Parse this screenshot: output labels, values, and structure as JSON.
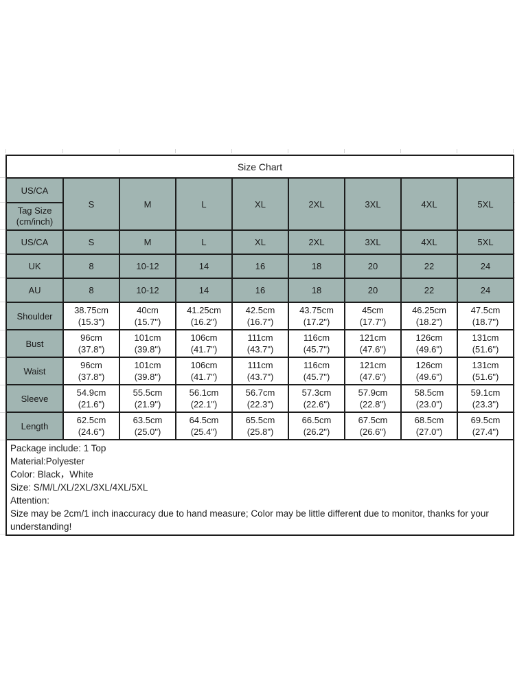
{
  "title": "Size Chart",
  "size_chart": {
    "corner_top": "US/CA",
    "corner_bottom": "Tag Size\n(cm/inch)",
    "sizes": [
      "S",
      "M",
      "L",
      "XL",
      "2XL",
      "3XL",
      "4XL",
      "5XL"
    ],
    "conversion_rows": [
      {
        "label": "US/CA",
        "values": [
          "S",
          "M",
          "L",
          "XL",
          "2XL",
          "3XL",
          "4XL",
          "5XL"
        ]
      },
      {
        "label": "UK",
        "values": [
          "8",
          "10-12",
          "14",
          "16",
          "18",
          "20",
          "22",
          "24"
        ]
      },
      {
        "label": "AU",
        "values": [
          "8",
          "10-12",
          "14",
          "16",
          "18",
          "20",
          "22",
          "24"
        ]
      }
    ],
    "measurement_rows": [
      {
        "label": "Shoulder",
        "values": [
          "38.75cm\n(15.3\")",
          "40cm\n(15.7\")",
          "41.25cm\n(16.2\")",
          "42.5cm\n(16.7\")",
          "43.75cm\n(17.2\")",
          "45cm\n(17.7\")",
          "46.25cm\n(18.2\")",
          "47.5cm\n(18.7\")"
        ]
      },
      {
        "label": "Bust",
        "values": [
          "96cm\n(37.8\")",
          "101cm\n(39.8\")",
          "106cm\n(41.7\")",
          "111cm\n(43.7\")",
          "116cm\n(45.7\")",
          "121cm\n(47.6\")",
          "126cm\n(49.6\")",
          "131cm\n(51.6\")"
        ]
      },
      {
        "label": "Waist",
        "values": [
          "96cm\n(37.8\")",
          "101cm\n(39.8\")",
          "106cm\n(41.7\")",
          "111cm\n(43.7\")",
          "116cm\n(45.7\")",
          "121cm\n(47.6\")",
          "126cm\n(49.6\")",
          "131cm\n(51.6\")"
        ]
      },
      {
        "label": "Sleeve",
        "values": [
          "54.9cm\n(21.6\")",
          "55.5cm\n(21.9\")",
          "56.1cm\n(22.1\")",
          "56.7cm\n(22.3\")",
          "57.3cm\n(22.6\")",
          "57.9cm\n(22.8\")",
          "58.5cm\n(23.0\")",
          "59.1cm\n(23.3\")"
        ]
      },
      {
        "label": "Length",
        "values": [
          "62.5cm\n(24.6\")",
          "63.5cm\n(25.0\")",
          "64.5cm\n(25.4\")",
          "65.5cm\n(25.8\")",
          "66.5cm\n(26.2\")",
          "67.5cm\n(26.6\")",
          "68.5cm\n(27.0\")",
          "69.5cm\n(27.4\")"
        ]
      }
    ],
    "notes": [
      "Package include: 1 Top",
      "Material:Polyester",
      "Color: Black，White",
      "Size: S/M/L/XL/2XL/3XL/4XL/5XL",
      "Attention:",
      "Size may be 2cm/1 inch inaccuracy due to hand measure; Color may be little different due to monitor, thanks for your understanding!"
    ]
  },
  "colors": {
    "header_fill": "#a1b5b2",
    "border": "#1d1d1d",
    "text": "#1a1a1a",
    "gridline": "#d5d5d5"
  }
}
